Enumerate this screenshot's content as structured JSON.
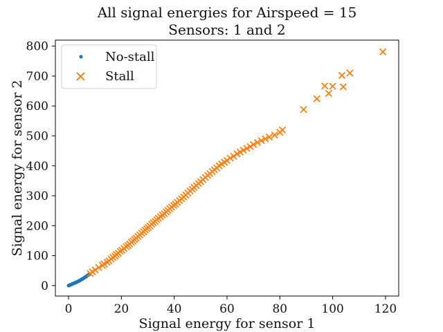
{
  "chart_data": {
    "type": "scatter",
    "title": "All signal energies for Airspeed = 15",
    "subtitle": "Sensors: 1 and 2",
    "xlabel": "Signal energy for sensor 1",
    "ylabel": "Signal energy for sensor 2",
    "xlim": [
      -5,
      125
    ],
    "ylim": [
      -35,
      820
    ],
    "xticks": [
      0,
      20,
      40,
      60,
      80,
      100,
      120
    ],
    "yticks": [
      0,
      100,
      200,
      300,
      400,
      500,
      600,
      700,
      800
    ],
    "grid": false,
    "legend_position": "top-left",
    "series": [
      {
        "name": "No-stall",
        "marker": "dot",
        "color": "#1f77b4",
        "points": [
          [
            0.0,
            0.0
          ],
          [
            0.2,
            0.6
          ],
          [
            0.4,
            1.3
          ],
          [
            0.6,
            2.0
          ],
          [
            0.8,
            2.8
          ],
          [
            1.0,
            3.6
          ],
          [
            1.2,
            4.5
          ],
          [
            1.4,
            5.2
          ],
          [
            1.6,
            6.0
          ],
          [
            1.8,
            6.8
          ],
          [
            2.0,
            7.6
          ],
          [
            2.2,
            8.3
          ],
          [
            2.4,
            9.0
          ],
          [
            2.6,
            9.8
          ],
          [
            2.8,
            10.6
          ],
          [
            3.0,
            11.4
          ],
          [
            3.2,
            12.2
          ],
          [
            3.4,
            13.1
          ],
          [
            3.6,
            14.0
          ],
          [
            3.8,
            15.0
          ],
          [
            4.0,
            15.8
          ],
          [
            4.2,
            16.8
          ],
          [
            4.4,
            17.8
          ],
          [
            4.6,
            18.8
          ],
          [
            4.8,
            19.8
          ],
          [
            5.0,
            20.8
          ],
          [
            5.2,
            21.9
          ],
          [
            5.4,
            23.0
          ],
          [
            5.6,
            24.1
          ],
          [
            5.8,
            25.2
          ],
          [
            6.0,
            26.4
          ],
          [
            6.2,
            27.5
          ],
          [
            6.4,
            28.7
          ],
          [
            6.6,
            29.9
          ],
          [
            6.8,
            31.1
          ],
          [
            7.0,
            32.3
          ],
          [
            7.2,
            33.6
          ],
          [
            7.4,
            34.8
          ],
          [
            7.6,
            36.0
          ],
          [
            7.8,
            37.2
          ]
        ]
      },
      {
        "name": "Stall",
        "marker": "x",
        "color": "#ff7f0e",
        "points": [
          [
            8.2,
            40
          ],
          [
            9.0,
            46
          ],
          [
            10.1,
            52
          ],
          [
            11.4,
            60
          ],
          [
            12.8,
            68
          ],
          [
            13.5,
            72
          ],
          [
            14.6,
            78
          ],
          [
            15.3,
            82
          ],
          [
            16.1,
            89
          ],
          [
            16.8,
            94
          ],
          [
            17.6,
            98
          ],
          [
            18.1,
            104
          ],
          [
            18.8,
            108
          ],
          [
            19.6,
            114
          ],
          [
            20.2,
            118
          ],
          [
            21.0,
            124
          ],
          [
            21.8,
            130
          ],
          [
            22.5,
            134
          ],
          [
            23.1,
            139
          ],
          [
            23.8,
            145
          ],
          [
            24.4,
            149
          ],
          [
            25.0,
            154
          ],
          [
            25.6,
            158
          ],
          [
            26.3,
            164
          ],
          [
            27.0,
            169
          ],
          [
            27.7,
            175
          ],
          [
            28.4,
            180
          ],
          [
            29.0,
            185
          ],
          [
            29.6,
            190
          ],
          [
            30.2,
            194
          ],
          [
            30.8,
            199
          ],
          [
            31.5,
            205
          ],
          [
            32.1,
            210
          ],
          [
            32.8,
            214
          ],
          [
            33.4,
            220
          ],
          [
            34.0,
            225
          ],
          [
            34.8,
            230
          ],
          [
            35.5,
            236
          ],
          [
            36.3,
            240
          ],
          [
            37.0,
            246
          ],
          [
            37.6,
            251
          ],
          [
            38.3,
            257
          ],
          [
            39.0,
            262
          ],
          [
            39.8,
            268
          ],
          [
            40.5,
            272
          ],
          [
            41.2,
            278
          ],
          [
            42.0,
            284
          ],
          [
            42.8,
            290
          ],
          [
            43.6,
            296
          ],
          [
            44.4,
            302
          ],
          [
            45.2,
            309
          ],
          [
            46.0,
            316
          ],
          [
            46.8,
            322
          ],
          [
            47.5,
            328
          ],
          [
            48.4,
            334
          ],
          [
            49.2,
            341
          ],
          [
            50.0,
            347
          ],
          [
            50.9,
            354
          ],
          [
            51.8,
            361
          ],
          [
            52.7,
            368
          ],
          [
            53.5,
            374
          ],
          [
            54.4,
            381
          ],
          [
            55.2,
            387
          ],
          [
            56.1,
            393
          ],
          [
            57.0,
            400
          ],
          [
            58.0,
            406
          ],
          [
            59.0,
            412
          ],
          [
            60.0,
            418
          ],
          [
            61.2,
            426
          ],
          [
            62.5,
            432
          ],
          [
            63.8,
            440
          ],
          [
            65.0,
            446
          ],
          [
            66.2,
            452
          ],
          [
            67.5,
            458
          ],
          [
            68.8,
            464
          ],
          [
            70.0,
            471
          ],
          [
            71.5,
            478
          ],
          [
            73.0,
            484
          ],
          [
            74.5,
            490
          ],
          [
            76.0,
            496
          ],
          [
            78.0,
            503
          ],
          [
            80.0,
            512
          ],
          [
            81.0,
            520
          ],
          [
            89.0,
            588
          ],
          [
            94.0,
            624
          ],
          [
            97.0,
            667
          ],
          [
            98.5,
            642
          ],
          [
            100.0,
            666
          ],
          [
            103.5,
            702
          ],
          [
            104.0,
            664
          ],
          [
            106.5,
            710
          ],
          [
            119.0,
            781
          ]
        ]
      }
    ]
  }
}
